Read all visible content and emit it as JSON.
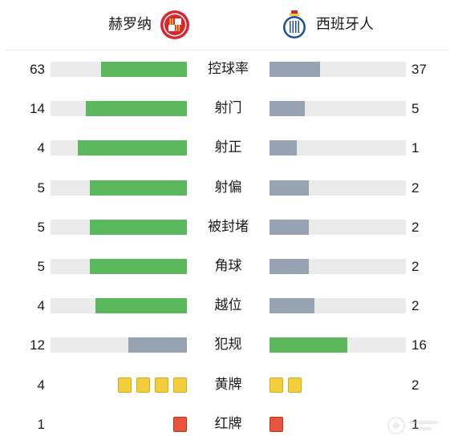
{
  "header": {
    "home_team": "赫罗纳",
    "away_team": "西班牙人",
    "home_crest_icon": "girona-crest-icon",
    "away_crest_icon": "espanyol-crest-icon"
  },
  "colors": {
    "leading": "#5cb85c",
    "trailing": "#97a2b3",
    "track": "#ebebeb",
    "yellow_card": "#f2cd3c",
    "red_card": "#e8543c"
  },
  "stats": [
    {
      "label": "控球率",
      "home": "63",
      "away": "37",
      "home_fraction": 0.63,
      "away_fraction": 0.37
    },
    {
      "label": "射门",
      "home": "14",
      "away": "5",
      "home_fraction": 0.74,
      "away_fraction": 0.26
    },
    {
      "label": "射正",
      "home": "4",
      "away": "1",
      "home_fraction": 0.8,
      "away_fraction": 0.2
    },
    {
      "label": "射偏",
      "home": "5",
      "away": "2",
      "home_fraction": 0.71,
      "away_fraction": 0.29
    },
    {
      "label": "被封堵",
      "home": "5",
      "away": "2",
      "home_fraction": 0.71,
      "away_fraction": 0.29
    },
    {
      "label": "角球",
      "home": "5",
      "away": "2",
      "home_fraction": 0.71,
      "away_fraction": 0.29
    },
    {
      "label": "越位",
      "home": "4",
      "away": "2",
      "home_fraction": 0.67,
      "away_fraction": 0.33
    },
    {
      "label": "犯规",
      "home": "12",
      "away": "16",
      "home_fraction": 0.43,
      "away_fraction": 0.57
    }
  ],
  "cards": [
    {
      "label": "黄牌",
      "home": "4",
      "away": "2",
      "type": "yellow",
      "home_count": 4,
      "away_count": 2
    },
    {
      "label": "红牌",
      "home": "1",
      "away": "1",
      "type": "red",
      "home_count": 1,
      "away_count": 1
    }
  ]
}
